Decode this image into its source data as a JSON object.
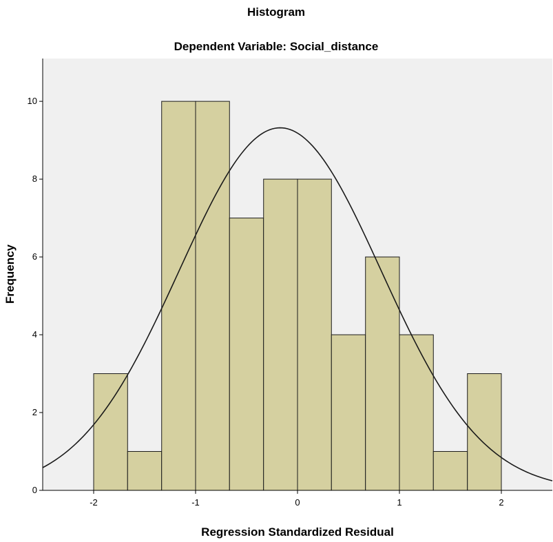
{
  "chart_data": {
    "type": "bar",
    "title": "Histogram",
    "subtitle": "Dependent Variable: Social_distance",
    "xlabel": "Regression Standardized Residual",
    "ylabel": "Frequency",
    "xlim": [
      -2.5,
      2.5
    ],
    "ylim": [
      0,
      11.1
    ],
    "x_ticks": [
      -2,
      -1,
      0,
      1,
      2
    ],
    "y_ticks": [
      0,
      2,
      4,
      6,
      8,
      10
    ],
    "bins": [
      {
        "start": -2.0,
        "end": -1.667,
        "count": 3
      },
      {
        "start": -1.667,
        "end": -1.333,
        "count": 1
      },
      {
        "start": -1.333,
        "end": -1.0,
        "count": 10
      },
      {
        "start": -1.0,
        "end": -0.667,
        "count": 10
      },
      {
        "start": -0.667,
        "end": -0.333,
        "count": 7
      },
      {
        "start": -0.333,
        "end": 0.0,
        "count": 8
      },
      {
        "start": 0.0,
        "end": 0.333,
        "count": 8
      },
      {
        "start": 0.333,
        "end": 0.667,
        "count": 4
      },
      {
        "start": 0.667,
        "end": 1.0,
        "count": 6
      },
      {
        "start": 1.0,
        "end": 1.333,
        "count": 4
      },
      {
        "start": 1.333,
        "end": 1.667,
        "count": 1
      },
      {
        "start": 1.667,
        "end": 2.0,
        "count": 3
      }
    ],
    "normal_curve": {
      "mean": -0.17,
      "sd": 0.99,
      "peak": 9.32
    },
    "grid": false,
    "colors": {
      "bar_fill": "#d5d0a0",
      "bar_stroke": "#1a1a1a",
      "plot_bg": "#f0f0f0",
      "curve": "#1a1a1a"
    }
  }
}
